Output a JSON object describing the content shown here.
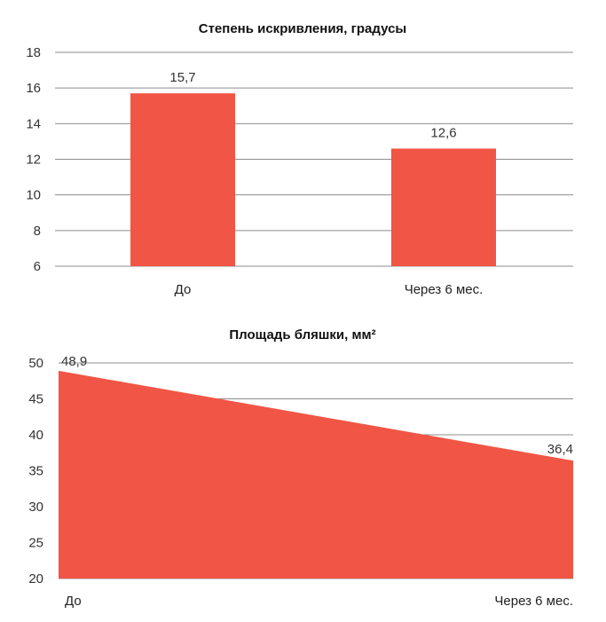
{
  "chart_data": [
    {
      "type": "bar",
      "title": "Степень искривления, градусы",
      "categories": [
        "До",
        "Через 6 мес."
      ],
      "values": [
        15.7,
        12.6
      ],
      "value_labels": [
        "15,7",
        "12,6"
      ],
      "ylim": [
        6,
        18
      ],
      "yticks": [
        6,
        8,
        10,
        12,
        14,
        16,
        18
      ],
      "xlabel": "",
      "ylabel": "",
      "grid": true,
      "color": "#f05545"
    },
    {
      "type": "area",
      "title": "Площадь бляшки, мм²",
      "categories": [
        "До",
        "Через 6 мес."
      ],
      "values": [
        48.9,
        36.4
      ],
      "value_labels": [
        "48,9",
        "36,4"
      ],
      "ylim": [
        20,
        50
      ],
      "yticks": [
        20,
        25,
        30,
        35,
        40,
        45,
        50
      ],
      "xlabel": "",
      "ylabel": "",
      "grid": true,
      "color": "#f05545"
    }
  ]
}
